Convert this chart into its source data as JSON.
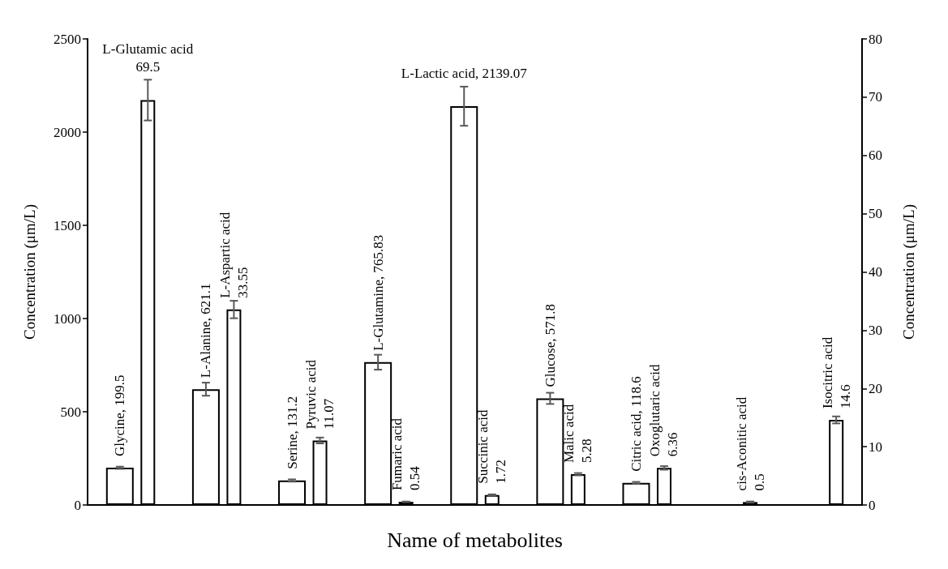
{
  "chart_data": {
    "type": "bar",
    "xlabel": "Name of metabolites",
    "ylabel": "Concentration (μm/L)",
    "y2label": "Concentration (μm/L)",
    "categories": [
      null,
      null,
      null,
      null,
      null,
      null,
      null,
      null,
      null
    ],
    "series": [
      {
        "color": "#ffffff",
        "values": [
          199.5,
          621.1,
          131.2,
          765.83,
          2139.07,
          571.8,
          118.6,
          null,
          null
        ],
        "errors": [
          6,
          35,
          6,
          40,
          105,
          30,
          5,
          null,
          null
        ],
        "value_labels": [
          "Glycine, 199.5",
          "L-Alanine, 621.1",
          "Serine, 131.2",
          "L-Glutamine, 765.83",
          "L-Lactic acid, 2139.07",
          "Glucose, 571.8",
          "Citric acid, 118.6",
          null,
          null
        ]
      },
      {
        "color": "#ffffff",
        "axis": "y2",
        "values": [
          69.5,
          33.55,
          11.07,
          0.54,
          1.72,
          5.28,
          6.36,
          0.5,
          14.6
        ],
        "errors": [
          3.5,
          1.5,
          0.5,
          0.05,
          0.1,
          0.2,
          0.3,
          0.1,
          0.6
        ],
        "value_labels": [
          "L-Glutamic acid\n69.5",
          "L-Aspartic acid\n33.55",
          "Pyruvic acid\n11.07",
          "Fumaric acid\n0.54",
          "Succinic acid\n1.72",
          "Malic acid\n5.28",
          "Oxoglutaric acid\n6.36",
          "cis-Aconitic acid\n0.5",
          "Isocitric acid\n14.6"
        ]
      }
    ],
    "ylim": [
      0,
      2500
    ],
    "yticks": [
      0,
      500,
      1000,
      1500,
      2000,
      2500
    ],
    "y2lim": [
      0,
      80
    ],
    "y2ticks": [
      0,
      10,
      20,
      30,
      40,
      50,
      60,
      70,
      80
    ],
    "grid": false
  }
}
